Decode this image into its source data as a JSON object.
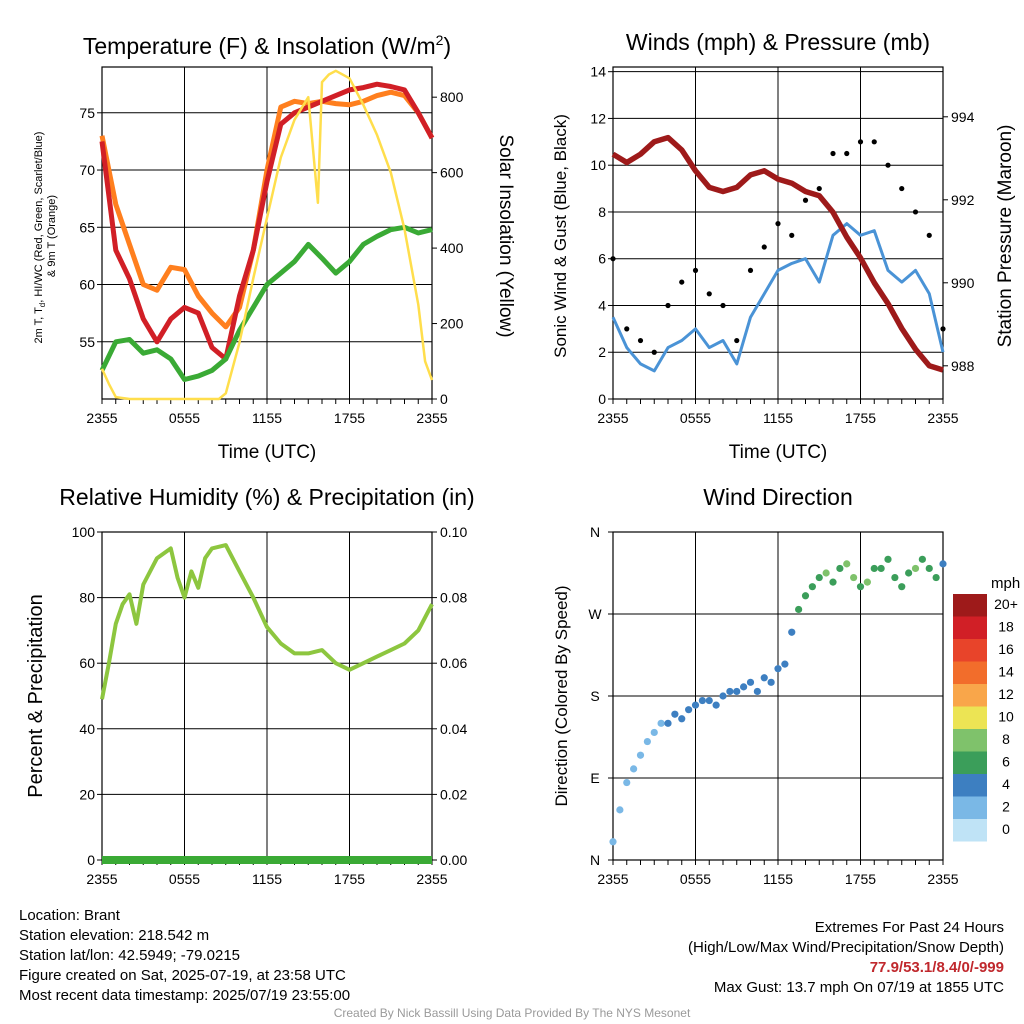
{
  "chart_data": [
    {
      "type": "line",
      "title": "Temperature (F) & Insolation (W/m²)",
      "xlabel": "Time (UTC)",
      "ylabel_left_lines": [
        "2m T, Td, HI/WC (Red, Green, Scarlet/Blue)",
        "& 9m T (Orange)"
      ],
      "ylabel_right": "Solar Insolation (Yellow)",
      "x_ticks": [
        "2355",
        "0555",
        "1155",
        "1755",
        "2355"
      ],
      "ylim_left": [
        50,
        79
      ],
      "ylim_right": [
        0,
        880
      ],
      "y_ticks_left": [
        55,
        60,
        65,
        70,
        75
      ],
      "y_ticks_right": [
        0,
        200,
        400,
        600,
        800
      ],
      "series": [
        {
          "color": "#ff7f1e",
          "axis": "left",
          "x_hours": [
            0,
            1,
            2,
            3,
            4,
            5,
            6,
            7,
            8,
            9,
            10,
            11,
            12,
            13,
            14,
            15,
            16,
            17,
            18,
            19,
            20,
            21,
            22,
            23,
            24
          ],
          "values": [
            73,
            67,
            63.5,
            60,
            59.5,
            61.5,
            61.3,
            59,
            57.5,
            56.3,
            58,
            63,
            70,
            75.5,
            76,
            75.8,
            76,
            75.8,
            75.7,
            76,
            76.5,
            76.8,
            76.5,
            75,
            72.8
          ]
        },
        {
          "color": "#d11f26",
          "axis": "left",
          "x_hours": [
            0,
            1,
            2,
            3,
            4,
            5,
            6,
            7,
            8,
            9,
            10,
            11,
            12,
            13,
            14,
            15,
            16,
            17,
            18,
            19,
            20,
            21,
            22,
            23,
            24
          ],
          "values": [
            72.5,
            63,
            60.5,
            57,
            55,
            57,
            58,
            57.5,
            54.5,
            53.5,
            59,
            63,
            69,
            74,
            75,
            75.5,
            76,
            76.5,
            77,
            77.2,
            77.5,
            77.3,
            77,
            75,
            72.8
          ]
        },
        {
          "color": "#3aaa35",
          "axis": "left",
          "x_hours": [
            0,
            1,
            2,
            3,
            4,
            5,
            6,
            7,
            8,
            9,
            10,
            11,
            12,
            13,
            14,
            15,
            16,
            17,
            18,
            19,
            20,
            21,
            22,
            23,
            24
          ],
          "values": [
            52.5,
            55,
            55.2,
            54,
            54.3,
            53.5,
            51.7,
            52,
            52.5,
            53.5,
            56,
            58,
            60,
            61,
            62,
            63.5,
            62.3,
            61,
            62,
            63.5,
            64.2,
            64.8,
            65,
            64.5,
            64.8
          ]
        },
        {
          "color": "#ffde4c",
          "axis": "right",
          "x_hours": [
            0,
            0.5,
            1,
            2,
            3,
            4,
            5,
            6,
            7,
            8,
            8.5,
            9,
            10,
            11,
            12,
            13,
            14,
            15,
            15.7,
            16,
            16.5,
            17,
            18,
            19,
            20,
            21,
            22,
            23,
            23.5,
            24
          ],
          "values": [
            80,
            40,
            5,
            0,
            0,
            0,
            0,
            0,
            0,
            0,
            0,
            15,
            150,
            320,
            480,
            640,
            740,
            800,
            520,
            840,
            860,
            870,
            850,
            780,
            700,
            600,
            450,
            250,
            100,
            50
          ]
        }
      ]
    },
    {
      "type": "line",
      "title": "Winds (mph) & Pressure (mb)",
      "xlabel": "Time (UTC)",
      "ylabel_left": "Sonic Wind & Gust (Blue, Black)",
      "ylabel_right": "Station Pressure (Maroon)",
      "x_ticks": [
        "2355",
        "0555",
        "1155",
        "1755",
        "2355"
      ],
      "ylim_left": [
        0,
        14.2
      ],
      "ylim_right": [
        987.2,
        995.2
      ],
      "y_ticks_left": [
        0,
        2,
        4,
        6,
        8,
        10,
        12,
        14
      ],
      "y_ticks_right": [
        988,
        990,
        992,
        994
      ],
      "series": [
        {
          "name": "wind",
          "color": "#4a93d6",
          "axis": "left",
          "x_hours": [
            0,
            1,
            2,
            3,
            4,
            5,
            6,
            7,
            8,
            9,
            10,
            11,
            12,
            13,
            14,
            15,
            16,
            17,
            18,
            19,
            20,
            21,
            22,
            23,
            24
          ],
          "values": [
            3.5,
            2.2,
            1.5,
            1.2,
            2.2,
            2.5,
            3,
            2.2,
            2.5,
            1.5,
            3.5,
            4.5,
            5.5,
            5.8,
            6,
            5,
            7,
            7.5,
            7,
            7.2,
            5.5,
            5,
            5.5,
            4.5,
            2
          ]
        },
        {
          "name": "gust",
          "color": "#000000",
          "axis": "left",
          "x_hours": [
            0,
            1,
            2,
            3,
            4,
            5,
            6,
            7,
            8,
            9,
            10,
            11,
            12,
            13,
            14,
            15,
            16,
            17,
            18,
            19,
            20,
            21,
            22,
            23,
            24
          ],
          "values": [
            6,
            3,
            2.5,
            2,
            4,
            5,
            5.5,
            4.5,
            4,
            2.5,
            5.5,
            6.5,
            7.5,
            7,
            8.5,
            9,
            10.5,
            10.5,
            11,
            11,
            10,
            9,
            8,
            7,
            3
          ]
        },
        {
          "name": "pressure",
          "color": "#9e1a1a",
          "axis": "right",
          "x_hours": [
            0,
            1,
            2,
            3,
            4,
            5,
            6,
            7,
            8,
            9,
            10,
            11,
            12,
            13,
            14,
            15,
            16,
            17,
            18,
            19,
            20,
            21,
            22,
            23,
            24
          ],
          "values": [
            993.1,
            992.9,
            993.1,
            993.4,
            993.5,
            993.2,
            992.7,
            992.3,
            992.2,
            992.3,
            992.6,
            992.7,
            992.5,
            992.4,
            992.2,
            992.1,
            991.7,
            991.1,
            990.6,
            990,
            989.5,
            988.9,
            988.4,
            988,
            987.9
          ]
        }
      ]
    },
    {
      "type": "line",
      "title": "Relative Humidity (%) & Precipitation (in)",
      "xlabel": "",
      "ylabel_left": "Percent & Precipitation",
      "x_ticks": [
        "2355",
        "0555",
        "1155",
        "1755",
        "2355"
      ],
      "ylim_left": [
        0,
        100
      ],
      "ylim_right": [
        0,
        0.1
      ],
      "y_ticks_left": [
        0,
        20,
        40,
        60,
        80,
        100
      ],
      "y_ticks_right": [
        "0.00",
        "0.02",
        "0.04",
        "0.06",
        "0.08",
        "0.10"
      ],
      "series": [
        {
          "name": "rh",
          "color": "#8dc63f",
          "axis": "left",
          "x_hours": [
            0,
            0.5,
            1,
            1.5,
            2,
            2.5,
            3,
            4,
            5,
            5.5,
            6,
            6.5,
            7,
            7.5,
            8,
            9,
            10,
            11,
            12,
            13,
            14,
            15,
            16,
            17,
            18,
            19,
            20,
            21,
            22,
            23,
            24
          ],
          "values": [
            49,
            60,
            72,
            78,
            81,
            72,
            84,
            92,
            95,
            86,
            80,
            88,
            83,
            92,
            95,
            96,
            88,
            80,
            71,
            66,
            63,
            63,
            64,
            60,
            58,
            60,
            62,
            64,
            66,
            70,
            78
          ]
        },
        {
          "name": "precip",
          "color": "#3aaa35",
          "axis": "left",
          "x_hours": [
            0,
            24
          ],
          "values": [
            0,
            0
          ]
        }
      ]
    },
    {
      "type": "scatter",
      "title": "Wind Direction",
      "ylabel": "Direction (Colored By Speed)",
      "x_ticks": [
        "2355",
        "0555",
        "1155",
        "1755",
        "2355"
      ],
      "y_ticks": [
        "N",
        "E",
        "S",
        "W",
        "N"
      ],
      "ylim_degrees": [
        0,
        360
      ],
      "legend_title": "mph",
      "legend_labels": [
        "20+",
        "18",
        "16",
        "14",
        "12",
        "10",
        "8",
        "6",
        "4",
        "2",
        "0"
      ],
      "legend_colors": [
        "#9e1a1a",
        "#d11f26",
        "#e8442a",
        "#f26d2b",
        "#f9a64a",
        "#ece454",
        "#7fc26b",
        "#3b9e5a",
        "#3d7fc1",
        "#7ab8e6",
        "#bfe3f6"
      ],
      "x_hours": [
        0,
        0.5,
        1,
        1.5,
        2,
        2.5,
        3,
        3.5,
        4,
        4.5,
        5,
        5.5,
        6,
        6.5,
        7,
        7.5,
        8,
        8.5,
        9,
        9.5,
        10,
        10.5,
        11,
        11.5,
        12,
        12.5,
        13,
        13.5,
        14,
        14.5,
        15,
        15.5,
        16,
        16.5,
        17,
        17.5,
        18,
        18.5,
        19,
        19.5,
        20,
        20.5,
        21,
        21.5,
        22,
        22.5,
        23,
        23.5,
        24
      ],
      "values": [
        20,
        55,
        85,
        100,
        115,
        130,
        140,
        150,
        150,
        160,
        155,
        165,
        170,
        175,
        175,
        170,
        180,
        185,
        185,
        190,
        195,
        185,
        200,
        195,
        210,
        215,
        250,
        275,
        290,
        300,
        310,
        315,
        305,
        320,
        325,
        310,
        300,
        305,
        320,
        320,
        330,
        310,
        300,
        315,
        320,
        330,
        320,
        310,
        325
      ],
      "speeds": [
        1,
        2,
        1,
        1,
        2,
        1,
        2,
        2,
        3,
        3,
        3,
        4,
        3,
        3,
        3,
        4,
        3,
        3,
        4,
        4,
        4,
        4,
        4,
        4,
        4,
        4,
        4,
        5,
        6,
        6,
        6,
        7,
        5,
        6,
        7,
        8,
        6,
        7,
        6,
        6,
        6,
        5,
        6,
        6,
        7,
        6,
        5,
        5,
        4
      ]
    }
  ],
  "footer": {
    "location": "Location: Brant",
    "elevation": "Station elevation: 218.542 m",
    "latlon": "Station lat/lon: 42.5949; -79.0215",
    "created": "Figure created on Sat, 2025-07-19, at 23:58 UTC",
    "recent": "Most recent data timestamp: 2025/07/19 23:55:00",
    "extremes_title": "Extremes For Past 24 Hours",
    "extremes_sub": "(High/Low/Max Wind/Precipitation/Snow Depth)",
    "extremes_values": "77.9/53.1/8.4/0/-999",
    "max_gust": "Max Gust: 13.7 mph On 07/19 at 1855 UTC",
    "credit": "Created By Nick Bassill Using Data Provided By The NYS Mesonet"
  }
}
